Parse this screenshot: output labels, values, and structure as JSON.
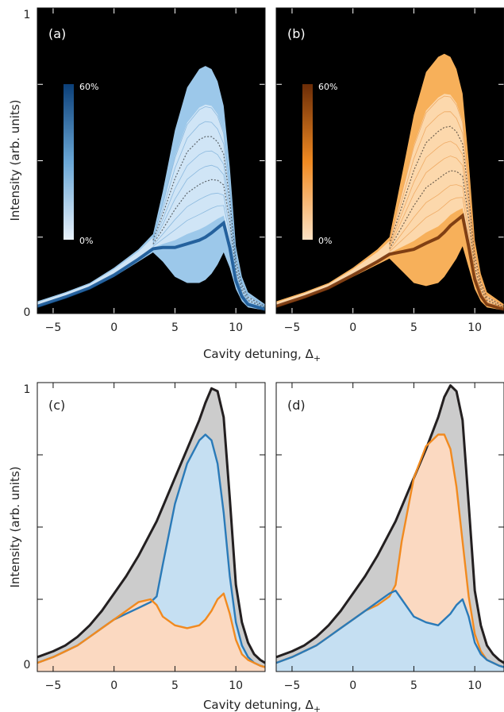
{
  "figure": {
    "x_label": "Cavity detuning, Δ",
    "x_label_sub": "+",
    "y_label_top": "Intensity (arb. units)",
    "y_label_bottom": "Intensity (arb. units)",
    "y_tick_max": "1",
    "y_tick_min": "0",
    "x_ticks": [
      -5,
      0,
      5,
      10
    ]
  },
  "chart_data": [
    {
      "type": "heatmap",
      "panel": "(a)",
      "colormap": "blues",
      "colorbar": {
        "min_label": "0%",
        "max_label": "60%"
      },
      "xlim": [
        -6.3,
        12.4
      ],
      "ylim": [
        0,
        1
      ],
      "envelope": {
        "x": [
          -6.3,
          -4,
          -2,
          0,
          2,
          3.2,
          4,
          5,
          6,
          7,
          7.5,
          8,
          8.5,
          9,
          9.5,
          10,
          10.5,
          11,
          12.4
        ],
        "upper": [
          0.04,
          0.07,
          0.1,
          0.15,
          0.21,
          0.26,
          0.4,
          0.6,
          0.74,
          0.8,
          0.81,
          0.8,
          0.76,
          0.68,
          0.48,
          0.22,
          0.12,
          0.07,
          0.03
        ],
        "lower": [
          0.02,
          0.05,
          0.08,
          0.12,
          0.17,
          0.2,
          0.17,
          0.12,
          0.1,
          0.1,
          0.11,
          0.13,
          0.16,
          0.2,
          0.15,
          0.08,
          0.04,
          0.02,
          0.01
        ]
      }
    },
    {
      "type": "heatmap",
      "panel": "(b)",
      "colormap": "oranges",
      "colorbar": {
        "min_label": "0%",
        "max_label": "60%"
      },
      "xlim": [
        -6.3,
        12.4
      ],
      "ylim": [
        0,
        1
      ],
      "envelope": {
        "x": [
          -6.3,
          -4,
          -2,
          0,
          2,
          3,
          4,
          5,
          6,
          7,
          7.5,
          8,
          8.5,
          9,
          9.5,
          10,
          10.5,
          11,
          12.4
        ],
        "upper": [
          0.04,
          0.07,
          0.1,
          0.15,
          0.21,
          0.25,
          0.45,
          0.65,
          0.79,
          0.84,
          0.85,
          0.84,
          0.8,
          0.72,
          0.5,
          0.24,
          0.13,
          0.07,
          0.03
        ],
        "lower": [
          0.02,
          0.05,
          0.08,
          0.12,
          0.16,
          0.18,
          0.14,
          0.1,
          0.09,
          0.1,
          0.12,
          0.15,
          0.18,
          0.22,
          0.15,
          0.08,
          0.04,
          0.02,
          0.01
        ]
      }
    },
    {
      "type": "area",
      "panel": "(c)",
      "xlim": [
        -6.3,
        12.4
      ],
      "ylim": [
        0,
        1
      ],
      "x": [
        -6.3,
        -5,
        -4,
        -3,
        -2,
        -1,
        0,
        1,
        2,
        3,
        3.5,
        4,
        5,
        6,
        7,
        7.5,
        8,
        8.5,
        9,
        9.5,
        10,
        10.5,
        11,
        11.5,
        12,
        12.4
      ],
      "series": [
        {
          "color": "#231f20",
          "fill": "#cccccc",
          "values": [
            0.05,
            0.07,
            0.09,
            0.12,
            0.16,
            0.21,
            0.27,
            0.33,
            0.4,
            0.48,
            0.52,
            0.57,
            0.67,
            0.77,
            0.87,
            0.93,
            0.98,
            0.97,
            0.88,
            0.6,
            0.3,
            0.17,
            0.1,
            0.06,
            0.04,
            0.03
          ]
        },
        {
          "color": "#2a7ab8",
          "fill": "#c5dff2",
          "values": [
            0.03,
            0.05,
            0.07,
            0.09,
            0.12,
            0.15,
            0.18,
            0.2,
            0.22,
            0.24,
            0.26,
            0.37,
            0.58,
            0.72,
            0.8,
            0.82,
            0.8,
            0.72,
            0.55,
            0.33,
            0.17,
            0.09,
            0.05,
            0.03,
            0.02,
            0.015
          ]
        },
        {
          "color": "#f18a1f",
          "fill": "#fbd9c1",
          "values": [
            0.03,
            0.05,
            0.07,
            0.09,
            0.12,
            0.15,
            0.18,
            0.21,
            0.24,
            0.25,
            0.23,
            0.19,
            0.16,
            0.15,
            0.16,
            0.18,
            0.21,
            0.25,
            0.27,
            0.2,
            0.11,
            0.06,
            0.04,
            0.03,
            0.02,
            0.015
          ]
        }
      ]
    },
    {
      "type": "area",
      "panel": "(d)",
      "xlim": [
        -6.3,
        12.4
      ],
      "ylim": [
        0,
        1
      ],
      "x": [
        -6.3,
        -5,
        -4,
        -3,
        -2,
        -1,
        0,
        1,
        2,
        3,
        3.5,
        4,
        5,
        6,
        7,
        7.5,
        8,
        8.5,
        9,
        9.5,
        10,
        10.5,
        11,
        11.5,
        12,
        12.4
      ],
      "series": [
        {
          "color": "#231f20",
          "fill": "#cccccc",
          "values": [
            0.05,
            0.07,
            0.09,
            0.12,
            0.16,
            0.21,
            0.27,
            0.33,
            0.4,
            0.48,
            0.52,
            0.57,
            0.67,
            0.77,
            0.88,
            0.95,
            0.99,
            0.97,
            0.87,
            0.58,
            0.28,
            0.16,
            0.09,
            0.06,
            0.04,
            0.03
          ]
        },
        {
          "color": "#f18a1f",
          "fill": "#fbd9c1",
          "values": [
            0.03,
            0.05,
            0.07,
            0.09,
            0.12,
            0.15,
            0.18,
            0.21,
            0.23,
            0.26,
            0.3,
            0.45,
            0.67,
            0.78,
            0.82,
            0.82,
            0.77,
            0.64,
            0.45,
            0.26,
            0.13,
            0.07,
            0.04,
            0.03,
            0.02,
            0.015
          ]
        },
        {
          "color": "#2a7ab8",
          "fill": "#c5dff2",
          "values": [
            0.03,
            0.05,
            0.07,
            0.09,
            0.12,
            0.15,
            0.18,
            0.21,
            0.24,
            0.27,
            0.28,
            0.25,
            0.19,
            0.17,
            0.16,
            0.18,
            0.2,
            0.23,
            0.25,
            0.19,
            0.1,
            0.06,
            0.04,
            0.03,
            0.02,
            0.015
          ]
        }
      ]
    }
  ]
}
